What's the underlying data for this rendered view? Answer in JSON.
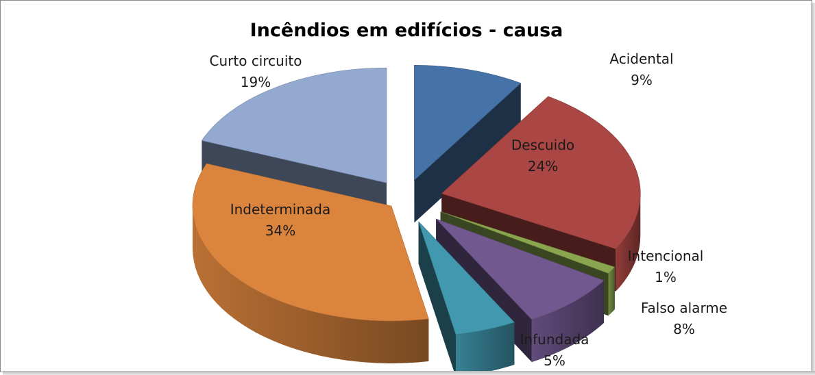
{
  "chart_data": {
    "type": "pie",
    "variant": "3d-exploded",
    "title": "Incêndios em edifícios - causa",
    "slices": [
      {
        "label": "Acidental",
        "percent_label": "9%",
        "value": 9,
        "color": "#4572A7"
      },
      {
        "label": "Descuido",
        "percent_label": "24%",
        "value": 24,
        "color": "#AA4643"
      },
      {
        "label": "Intencional",
        "percent_label": "1%",
        "value": 1,
        "color": "#89A54E"
      },
      {
        "label": "Falso alarme",
        "percent_label": "8%",
        "value": 8,
        "color": "#71588F"
      },
      {
        "label": "Infundada",
        "percent_label": "5%",
        "value": 5,
        "color": "#4198AF"
      },
      {
        "label": "Indeterminada",
        "percent_label": "34%",
        "value": 34,
        "color": "#DB843D"
      },
      {
        "label": "Curto circuito",
        "percent_label": "19%",
        "value": 19,
        "color": "#93A9CF"
      }
    ],
    "legend": "none"
  }
}
